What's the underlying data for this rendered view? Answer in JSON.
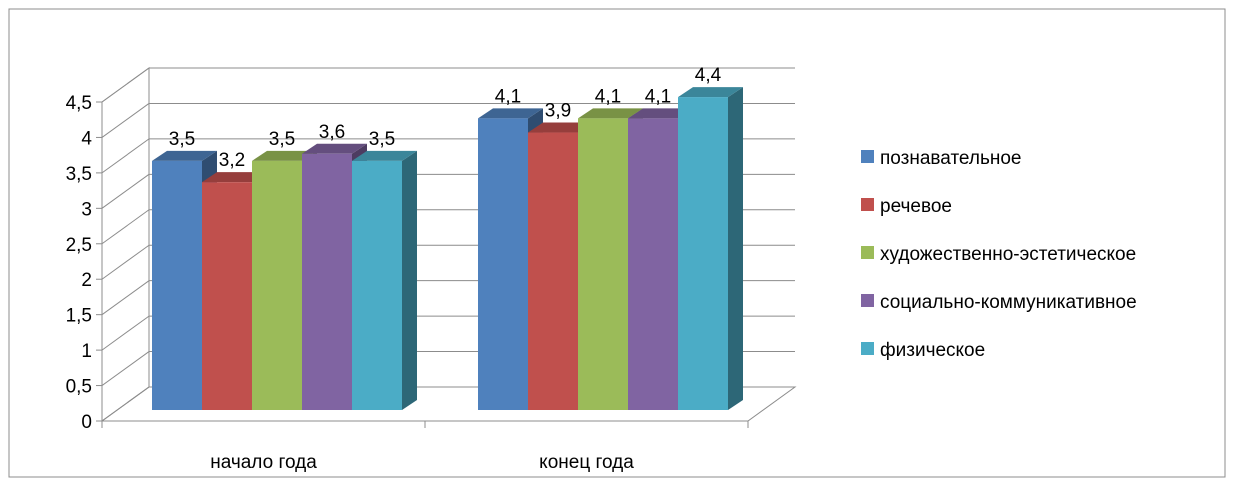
{
  "chart_data": {
    "type": "bar",
    "title": "",
    "xlabel": "",
    "ylabel": "",
    "ylim": [
      0,
      4.5
    ],
    "yticks": [
      "0",
      "0,5",
      "1",
      "1,5",
      "2",
      "2,5",
      "3",
      "3,5",
      "4",
      "4,5"
    ],
    "categories": [
      "начало года",
      "конец года"
    ],
    "series": [
      {
        "name": "познавательное",
        "values": [
          3.5,
          4.1
        ],
        "labels": [
          "3,5",
          "4,1"
        ],
        "color": "#4F81BD"
      },
      {
        "name": "речевое",
        "values": [
          3.2,
          3.9
        ],
        "labels": [
          "3,2",
          "3,9"
        ],
        "color": "#C0504D"
      },
      {
        "name": "художественно-эстетическое",
        "values": [
          3.5,
          4.1
        ],
        "labels": [
          "3,5",
          "4,1"
        ],
        "color": "#9BBB59"
      },
      {
        "name": "социально-коммуникативное",
        "values": [
          3.6,
          4.1
        ],
        "labels": [
          "3,6",
          "4,1"
        ],
        "color": "#8064A2"
      },
      {
        "name": "физическое",
        "values": [
          3.5,
          4.4
        ],
        "labels": [
          "3,5",
          "4,4"
        ],
        "color": "#4BACC6"
      }
    ],
    "grid": true,
    "legend": "right",
    "style": "3d-clustered-column"
  }
}
